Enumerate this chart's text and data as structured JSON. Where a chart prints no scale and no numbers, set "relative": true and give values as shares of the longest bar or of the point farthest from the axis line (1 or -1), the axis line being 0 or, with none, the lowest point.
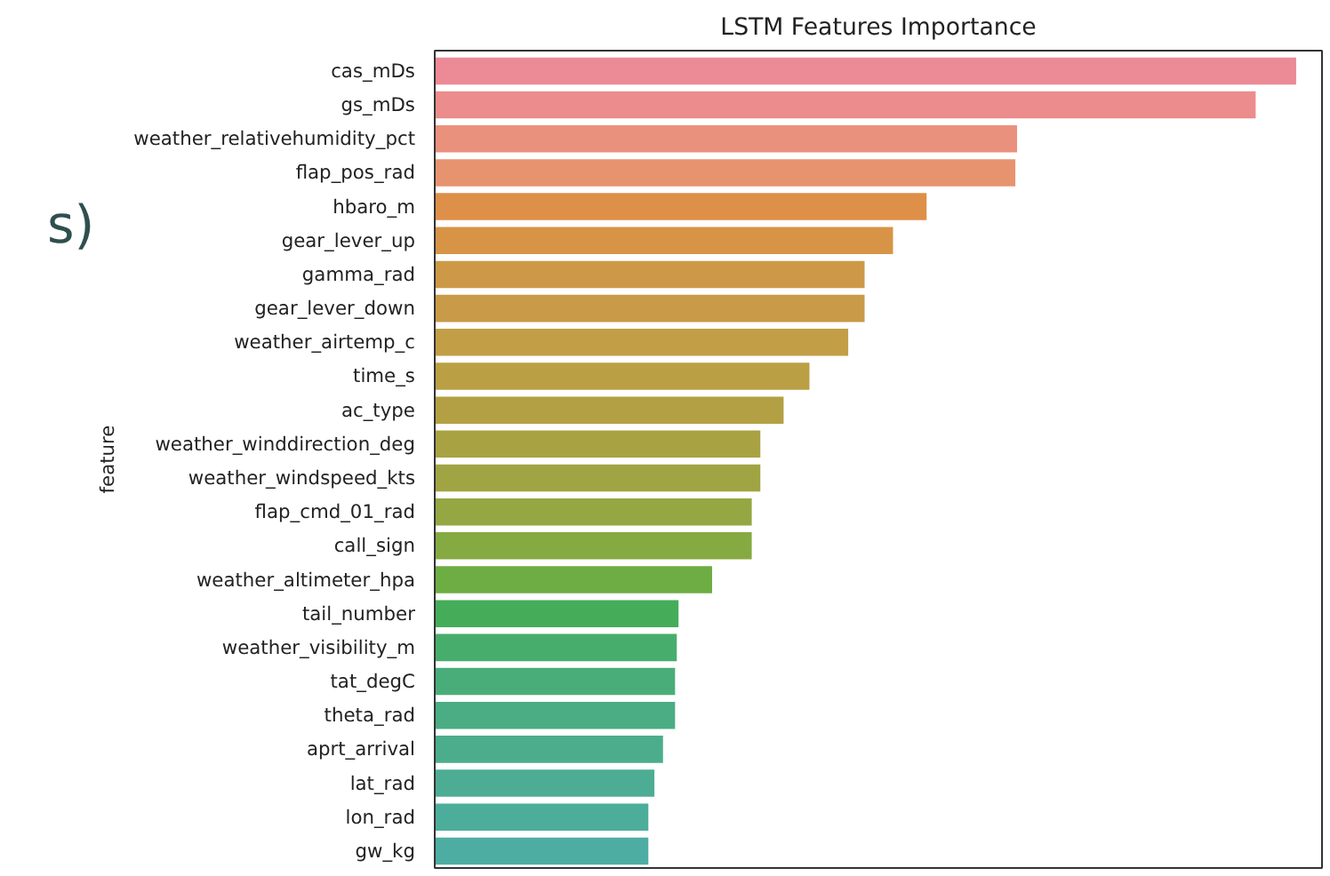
{
  "chart_data": {
    "type": "bar",
    "orientation": "horizontal",
    "relative": true,
    "title": "LSTM Features Importance",
    "ylabel": "feature",
    "annotations": [
      "s)"
    ],
    "categories": [
      "cas_mDs",
      "gs_mDs",
      "weather_relativehumidity_pct",
      "flap_pos_rad",
      "hbaro_m",
      "gear_lever_up",
      "gamma_rad",
      "gear_lever_down",
      "weather_airtemp_c",
      "time_s",
      "ac_type",
      "weather_winddirection_deg",
      "weather_windspeed_kts",
      "flap_cmd_01_rad",
      "call_sign",
      "weather_altimeter_hpa",
      "tail_number",
      "weather_visibility_m",
      "tat_degC",
      "theta_rad",
      "aprt_arrival",
      "lat_rad",
      "lon_rad",
      "gw_kg"
    ],
    "values": [
      1,
      0.953,
      0.676,
      0.674,
      0.571,
      0.532,
      0.499,
      0.499,
      0.48,
      0.435,
      0.405,
      0.378,
      0.378,
      0.368,
      0.368,
      0.322,
      0.283,
      0.281,
      0.279,
      0.279,
      0.265,
      0.255,
      0.248,
      0.248
    ],
    "colors": [
      "#ec8a96",
      "#ec8c8c",
      "#ea917d",
      "#e8936f",
      "#de8f48",
      "#d79446",
      "#cd9947",
      "#c99a47",
      "#c29e46",
      "#ba9f45",
      "#b3a044",
      "#a9a243",
      "#a1a442",
      "#94a742",
      "#85aa42",
      "#6ead44",
      "#45ac5a",
      "#47ad6c",
      "#49ad7a",
      "#4aad83",
      "#4bad8b",
      "#4cad94",
      "#4dad9b",
      "#4eada2"
    ]
  }
}
